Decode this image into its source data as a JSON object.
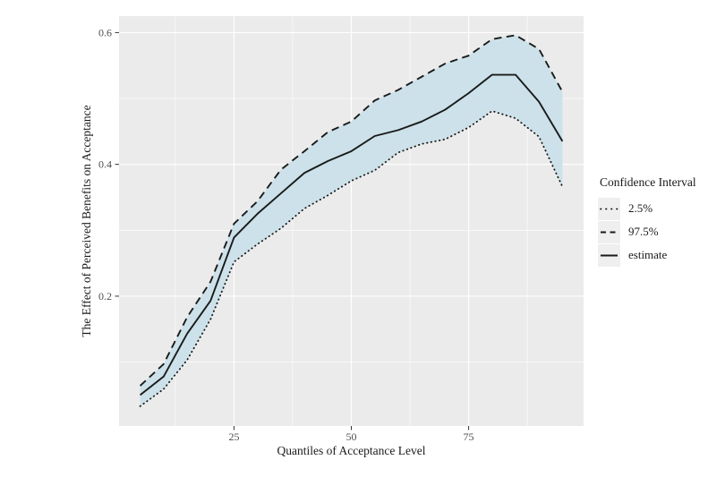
{
  "figure": {
    "x_axis_title": "Quantiles of Acceptance Level",
    "y_axis_title": "The Effect of Perceived Benefits on Acceptance"
  },
  "legend": {
    "title": "Confidence Interval",
    "items": [
      {
        "label": "2.5%",
        "line_style": "dotted"
      },
      {
        "label": "97.5%",
        "line_style": "dashed"
      },
      {
        "label": "estimate",
        "line_style": "solid"
      }
    ]
  },
  "colors": {
    "panel_bg": "#EBEBEB",
    "grid": "#FFFFFF",
    "line": "#1a1a1a",
    "ribbon_fill": "#CCE1E9",
    "tick_label": "#4d4d4d",
    "tick_mark": "#333333",
    "legend_key_bg": "#EFEFEF"
  },
  "chart_data": {
    "type": "line",
    "title": "",
    "xlabel": "Quantiles of Acceptance Level",
    "ylabel": "The Effect of Perceived Benefits on Acceptance",
    "x": [
      5,
      10,
      15,
      20,
      25,
      30,
      35,
      40,
      45,
      50,
      55,
      60,
      65,
      70,
      75,
      80,
      85,
      90,
      95
    ],
    "series": [
      {
        "name": "2.5%",
        "style": "dotted",
        "values": [
          0.033,
          0.059,
          0.103,
          0.165,
          0.252,
          0.279,
          0.303,
          0.333,
          0.353,
          0.375,
          0.391,
          0.418,
          0.431,
          0.438,
          0.456,
          0.481,
          0.47,
          0.442,
          0.366
        ]
      },
      {
        "name": "97.5%",
        "style": "dashed",
        "values": [
          0.064,
          0.097,
          0.168,
          0.222,
          0.31,
          0.344,
          0.392,
          0.42,
          0.449,
          0.465,
          0.497,
          0.513,
          0.533,
          0.553,
          0.565,
          0.59,
          0.596,
          0.575,
          0.51
        ]
      },
      {
        "name": "estimate",
        "style": "solid",
        "values": [
          0.05,
          0.078,
          0.143,
          0.193,
          0.289,
          0.325,
          0.356,
          0.387,
          0.405,
          0.42,
          0.443,
          0.452,
          0.465,
          0.483,
          0.508,
          0.536,
          0.536,
          0.495,
          0.435
        ]
      }
    ],
    "ribbon": {
      "lower": "2.5%",
      "upper": "97.5%",
      "fill": "#CCE1E9"
    },
    "xlim": [
      0.5,
      99.5
    ],
    "ylim": [
      0.003,
      0.625
    ],
    "x_ticks": [
      25,
      50,
      75
    ],
    "y_ticks": [
      0.2,
      0.4,
      0.6
    ],
    "x_minor_ticks": [
      12.5,
      37.5,
      62.5,
      87.5
    ],
    "y_minor_ticks": [
      0.1,
      0.3,
      0.5
    ],
    "grid": true,
    "legend_position": "right"
  }
}
